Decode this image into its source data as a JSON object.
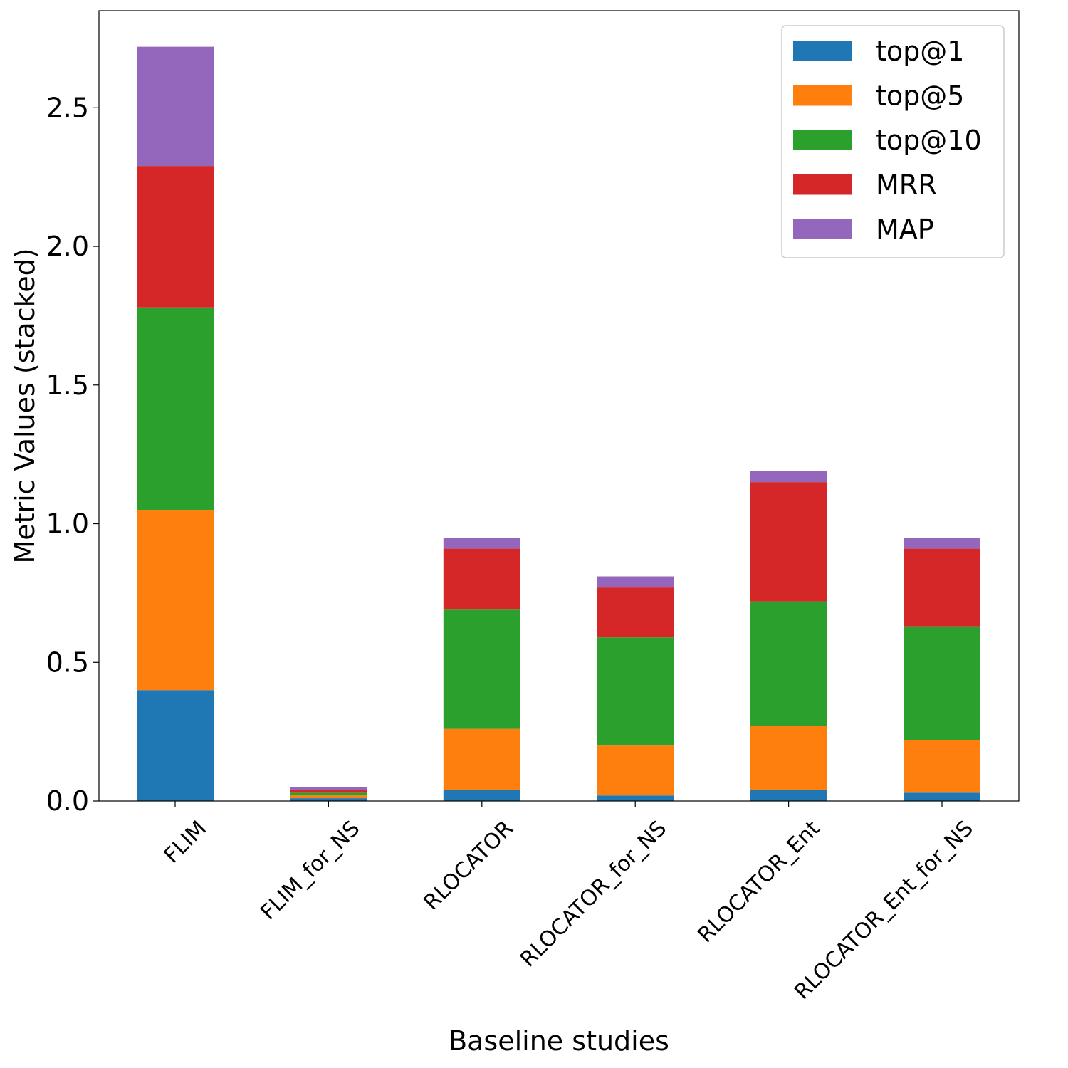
{
  "chart_data": {
    "type": "bar",
    "stacked": true,
    "title": "",
    "xlabel": "Baseline studies",
    "ylabel": "Metric Values (stacked)",
    "ylim": [
      0,
      2.85
    ],
    "yticks": [
      0.0,
      0.5,
      1.0,
      1.5,
      2.0,
      2.5
    ],
    "ytick_labels": [
      "0.0",
      "0.5",
      "1.0",
      "1.5",
      "2.0",
      "2.5"
    ],
    "categories": [
      "FLIM",
      "FLIM_for_NS",
      "RLOCATOR",
      "RLOCATOR_for_NS",
      "RLOCATOR_Ent",
      "RLOCATOR_Ent_for_NS"
    ],
    "legend_position": "top-right",
    "series": [
      {
        "name": "top@1",
        "color": "#1f77b4",
        "values": [
          0.4,
          0.01,
          0.04,
          0.02,
          0.04,
          0.03
        ]
      },
      {
        "name": "top@5",
        "color": "#ff7f0e",
        "values": [
          0.65,
          0.01,
          0.22,
          0.18,
          0.23,
          0.19
        ]
      },
      {
        "name": "top@10",
        "color": "#2ca02c",
        "values": [
          0.73,
          0.01,
          0.43,
          0.39,
          0.45,
          0.41
        ]
      },
      {
        "name": "MRR",
        "color": "#d62728",
        "values": [
          0.51,
          0.01,
          0.22,
          0.18,
          0.43,
          0.28
        ]
      },
      {
        "name": "MAP",
        "color": "#9467bd",
        "values": [
          0.43,
          0.01,
          0.04,
          0.04,
          0.04,
          0.04
        ]
      }
    ]
  }
}
